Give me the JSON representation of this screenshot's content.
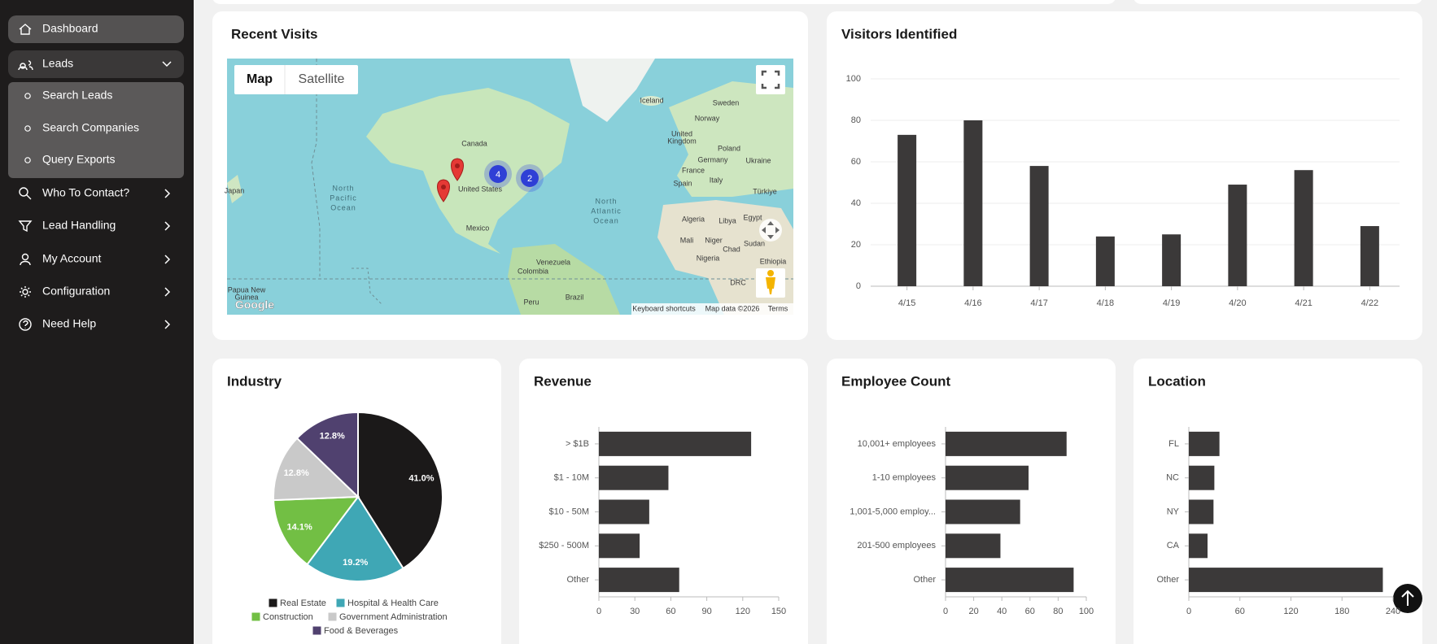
{
  "sidebar": {
    "menu": [
      {
        "label": "Dashboard"
      },
      {
        "label": "Leads",
        "children": [
          "Search Leads",
          "Search Companies",
          "Query Exports"
        ]
      },
      {
        "label": "Who To Contact?"
      },
      {
        "label": "Lead Handling"
      },
      {
        "label": "My Account"
      },
      {
        "label": "Configuration"
      },
      {
        "label": "Need Help"
      }
    ]
  },
  "map_card": {
    "title": "Recent Visits",
    "map_type_buttons": [
      "Map",
      "Satellite"
    ],
    "place_labels": [
      "Canada",
      "United States",
      "Mexico",
      "Iceland",
      "Sweden",
      "Norway",
      [
        "United",
        "Kingdom"
      ],
      "Poland",
      "Germany",
      "Ukraine",
      "France",
      "Italy",
      "Spain",
      "Türkiye",
      "Algeria",
      "Libya",
      "Egypt",
      "Mali",
      "Niger",
      "Chad",
      "Sudan",
      "Nigeria",
      "Ethiopia",
      "DRC",
      "Venezuela",
      "Colombia",
      "Peru",
      "Brazil",
      "Japan",
      [
        "Papua New",
        "Guinea"
      ],
      [
        "North",
        "Pacific",
        "Ocean"
      ],
      [
        "North",
        "Atlantic",
        "Ocean"
      ]
    ],
    "clusters": [
      4,
      2
    ],
    "attribution": [
      "Keyboard shortcuts",
      "Map data ©2026",
      "Terms"
    ],
    "logo": "Google"
  },
  "chart_data": [
    {
      "type": "bar",
      "title": "Visitors Identified",
      "categories": [
        "4/15",
        "4/16",
        "4/17",
        "4/18",
        "4/19",
        "4/20",
        "4/21",
        "4/22"
      ],
      "values": [
        73,
        80,
        58,
        24,
        25,
        49,
        56,
        29
      ],
      "color": "#3b3939",
      "ylim": [
        0,
        100
      ],
      "yticks": [
        0,
        20,
        40,
        60,
        80,
        100
      ],
      "grid": true
    },
    {
      "type": "pie",
      "title": "Industry",
      "categories": [
        "Real Estate",
        "Hospital & Health Care",
        "Construction",
        "Government Administration",
        "Food & Beverages"
      ],
      "values": [
        41.0,
        19.2,
        14.1,
        12.8,
        12.8
      ],
      "value_labels": [
        "41.0%",
        "19.2%",
        "14.1%",
        "12.8%",
        "12.8%"
      ],
      "colors": [
        "#1b1919",
        "#3fa7b5",
        "#72bf44",
        "#c9c9c9",
        "#50416f"
      ],
      "legend": "bottom"
    },
    {
      "type": "barh",
      "title": "Revenue",
      "categories": [
        "> $1B",
        "$1 - 10M",
        "$10 - 50M",
        "$250 - 500M",
        "Other"
      ],
      "values": [
        127,
        58,
        42,
        34,
        67
      ],
      "color": "#3b3939",
      "xlim": [
        0,
        150
      ],
      "xticks": [
        0,
        30,
        60,
        90,
        120,
        150
      ]
    },
    {
      "type": "barh",
      "title": "Employee Count",
      "categories": [
        "10,001+ employees",
        "1-10 employees",
        "1,001-5,000 employ...",
        "201-500 employees",
        "Other"
      ],
      "values": [
        86,
        59,
        53,
        39,
        91
      ],
      "color": "#3b3939",
      "xlim": [
        0,
        100
      ],
      "xticks": [
        0,
        20,
        40,
        60,
        80,
        100
      ]
    },
    {
      "type": "barh",
      "title": "Location",
      "categories": [
        "FL",
        "NC",
        "NY",
        "CA",
        "Other"
      ],
      "values": [
        36,
        30,
        29,
        22,
        228
      ],
      "color": "#3b3939",
      "xlim": [
        0,
        240
      ],
      "xticks": [
        0,
        60,
        120,
        180,
        240
      ]
    }
  ]
}
